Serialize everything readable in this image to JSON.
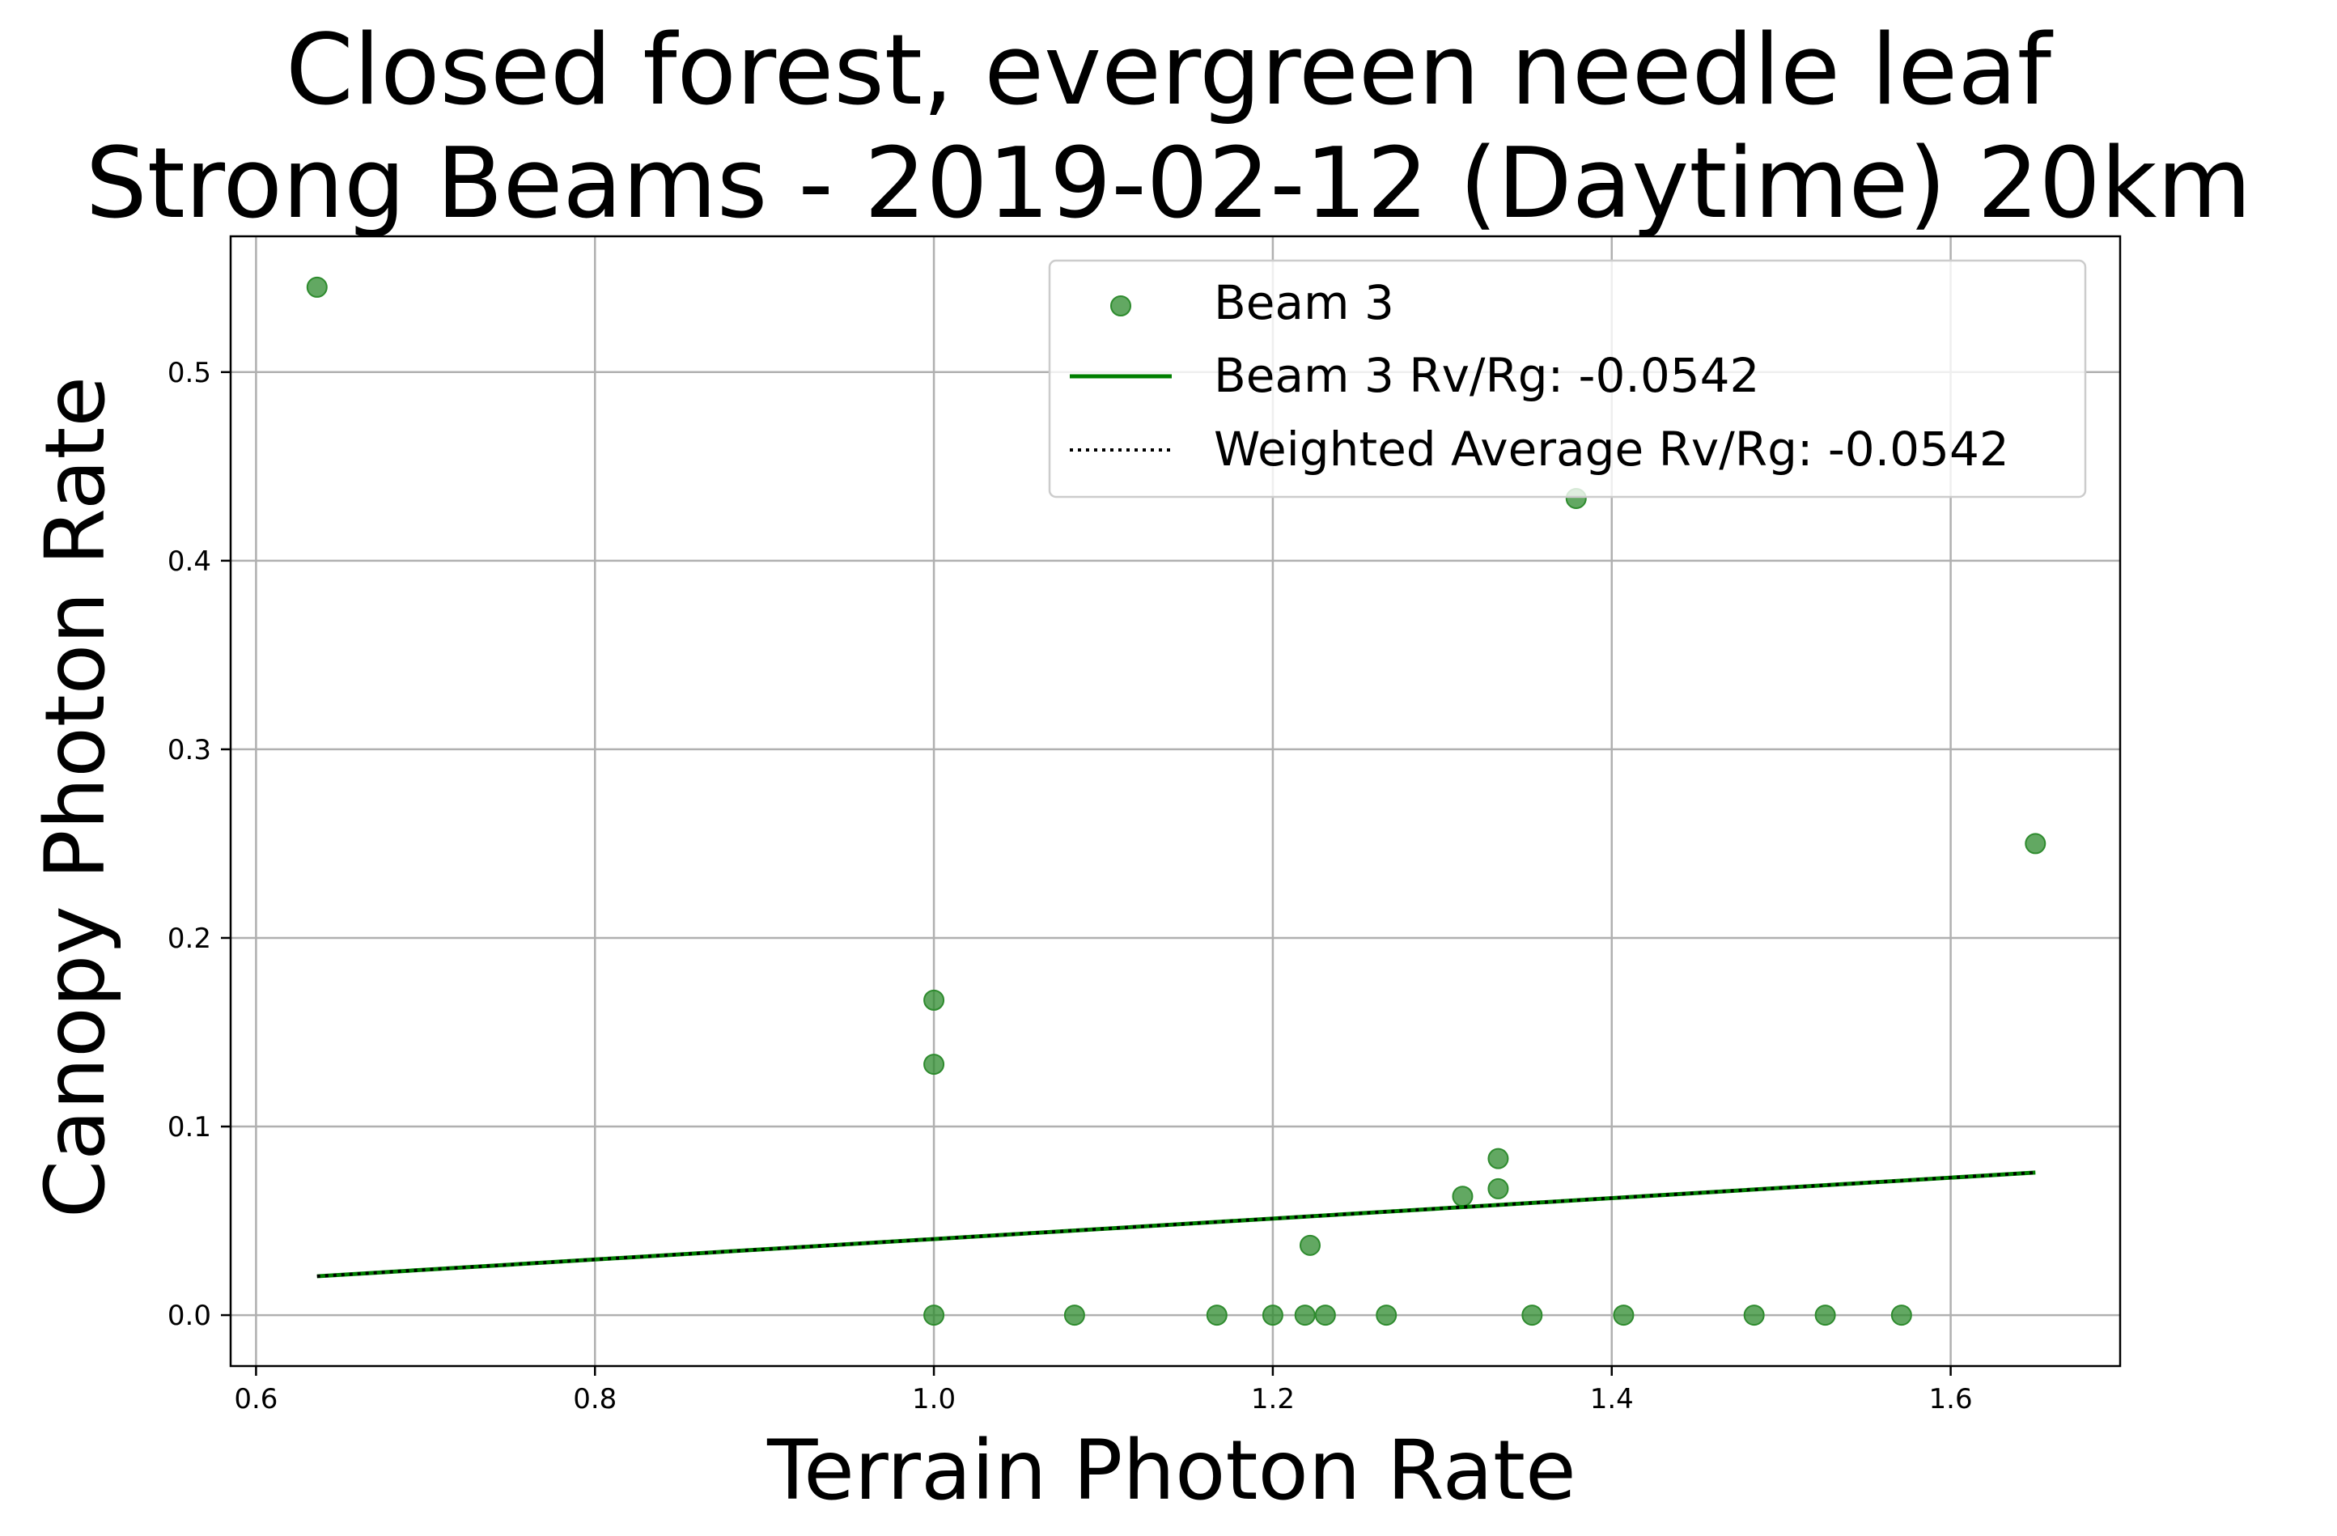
{
  "chart_data": {
    "type": "scatter",
    "title_line1": "Closed forest, evergreen needle leaf",
    "title_line2": "Strong Beams - 2019-02-12 (Daytime) 20km",
    "xlabel": "Terrain Photon Rate",
    "ylabel": "Canopy Photon Rate",
    "xlim": [
      0.585,
      1.7
    ],
    "ylim": [
      -0.027,
      0.572
    ],
    "xticks": [
      0.6,
      0.8,
      1.0,
      1.2,
      1.4,
      1.6
    ],
    "xtick_labels": [
      "0.6",
      "0.8",
      "1.0",
      "1.2",
      "1.4",
      "1.6"
    ],
    "yticks": [
      0.0,
      0.1,
      0.2,
      0.3,
      0.4,
      0.5
    ],
    "ytick_labels": [
      "0.0",
      "0.1",
      "0.2",
      "0.3",
      "0.4",
      "0.5"
    ],
    "grid": true,
    "legend_position": "upper right",
    "legend": [
      {
        "label": "Beam 3",
        "kind": "scatter",
        "color": "#2e8b2e"
      },
      {
        "label": "Beam 3 Rv/Rg: -0.0542",
        "kind": "line",
        "color": "#007f00"
      },
      {
        "label": "Weighted Average Rv/Rg: -0.0542",
        "kind": "dotted",
        "color": "#000000"
      }
    ],
    "series": [
      {
        "name": "Beam 3",
        "type": "scatter",
        "color": "#2e8b2e",
        "points": [
          [
            0.636,
            0.545
          ],
          [
            1.0,
            0.167
          ],
          [
            1.0,
            0.133
          ],
          [
            1.0,
            0.0
          ],
          [
            1.083,
            0.0
          ],
          [
            1.167,
            0.0
          ],
          [
            1.2,
            0.0
          ],
          [
            1.219,
            0.0
          ],
          [
            1.222,
            0.037
          ],
          [
            1.231,
            0.0
          ],
          [
            1.267,
            0.0
          ],
          [
            1.312,
            0.063
          ],
          [
            1.333,
            0.083
          ],
          [
            1.333,
            0.067
          ],
          [
            1.353,
            0.0
          ],
          [
            1.379,
            0.433
          ],
          [
            1.407,
            0.0
          ],
          [
            1.484,
            0.0
          ],
          [
            1.526,
            0.0
          ],
          [
            1.571,
            0.0
          ],
          [
            1.65,
            0.25
          ]
        ]
      },
      {
        "name": "Beam 3 Rv/Rg: -0.0542",
        "type": "line",
        "color": "#007f00",
        "points": [
          [
            0.636,
            0.0206
          ],
          [
            1.65,
            0.0756
          ]
        ]
      },
      {
        "name": "Weighted Average Rv/Rg: -0.0542",
        "type": "dotted",
        "color": "#000000",
        "points": [
          [
            0.636,
            0.0206
          ],
          [
            1.65,
            0.0756
          ]
        ]
      }
    ]
  }
}
